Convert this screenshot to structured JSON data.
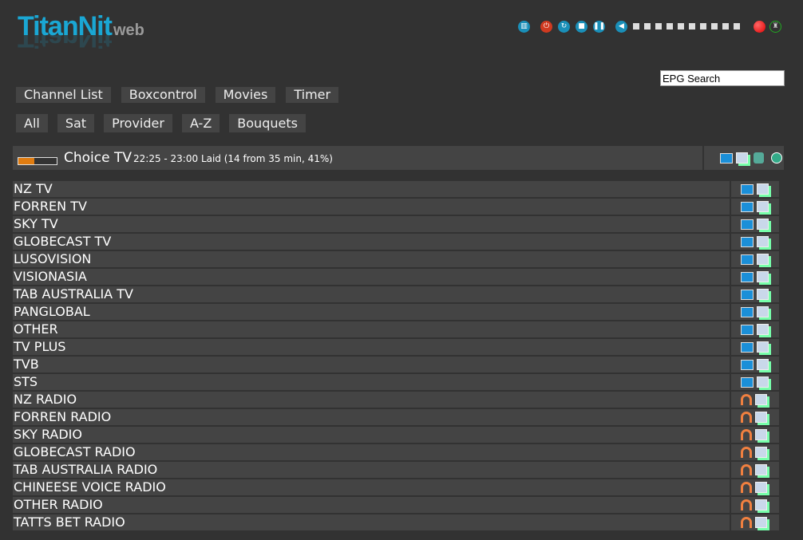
{
  "logo": {
    "main": "TitanNit",
    "sub": "web"
  },
  "controls": [
    {
      "name": "remote-icon",
      "glyph": "▥"
    },
    {
      "name": "power-icon",
      "glyph": "⏻",
      "color": "#d03a20"
    },
    {
      "name": "restart-icon",
      "glyph": "↻"
    },
    {
      "name": "stop-icon",
      "glyph": "■"
    },
    {
      "name": "pause-icon",
      "glyph": "❚❚"
    }
  ],
  "volume": {
    "glyph": "🔊",
    "levels": 10
  },
  "record": {
    "color": "#e00000"
  },
  "epg_search": {
    "value": "EPG Search"
  },
  "nav": [
    "Channel List",
    "Boxcontrol",
    "Movies",
    "Timer"
  ],
  "filters": [
    "All",
    "Sat",
    "Provider",
    "A-Z",
    "Bouquets"
  ],
  "current": {
    "channel": "Choice TV",
    "info": "22:25 - 23:00 Laid (14 from 35 min, 41%)",
    "progress_percent": 41
  },
  "bouquets": [
    {
      "name": "NZ TV",
      "type": "tv"
    },
    {
      "name": "FORREN TV",
      "type": "tv"
    },
    {
      "name": "SKY TV",
      "type": "tv"
    },
    {
      "name": "GLOBECAST TV",
      "type": "tv"
    },
    {
      "name": "LUSOVISION",
      "type": "tv"
    },
    {
      "name": "VISIONASIA",
      "type": "tv"
    },
    {
      "name": "TAB AUSTRALIA TV",
      "type": "tv"
    },
    {
      "name": "PANGLOBAL",
      "type": "tv"
    },
    {
      "name": "OTHER",
      "type": "tv"
    },
    {
      "name": "TV PLUS",
      "type": "tv"
    },
    {
      "name": "TVB",
      "type": "tv"
    },
    {
      "name": "STS",
      "type": "tv"
    },
    {
      "name": "NZ RADIO",
      "type": "radio"
    },
    {
      "name": "FORREN RADIO",
      "type": "radio"
    },
    {
      "name": "SKY RADIO",
      "type": "radio"
    },
    {
      "name": "GLOBECAST RADIO",
      "type": "radio"
    },
    {
      "name": "TAB AUSTRALIA RADIO",
      "type": "radio"
    },
    {
      "name": "CHINEESE VOICE RADIO",
      "type": "radio"
    },
    {
      "name": "OTHER RADIO",
      "type": "radio"
    },
    {
      "name": "TATTS BET RADIO",
      "type": "radio"
    }
  ]
}
